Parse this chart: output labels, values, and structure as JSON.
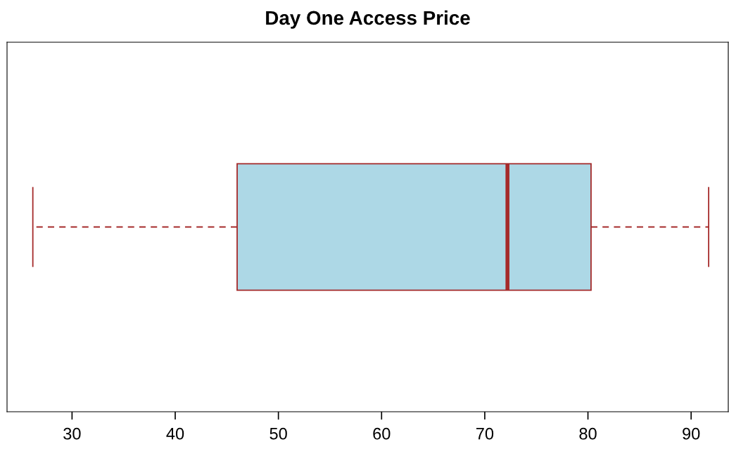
{
  "chart_data": {
    "type": "box",
    "title": "Day One Access Price",
    "orientation": "horizontal",
    "categories": [
      null
    ],
    "series": [
      {
        "color": "#add8e6",
        "boxes": [
          {
            "low": 26.2,
            "q1": 46.0,
            "median": 72.2,
            "q3": 80.3,
            "high": 91.7
          }
        ]
      }
    ],
    "xlim": [
      23.7,
      93.6
    ],
    "xticks": [
      30,
      40,
      50,
      60,
      70,
      80,
      90
    ],
    "tick_labels": "x",
    "grid": false,
    "legend": false
  }
}
